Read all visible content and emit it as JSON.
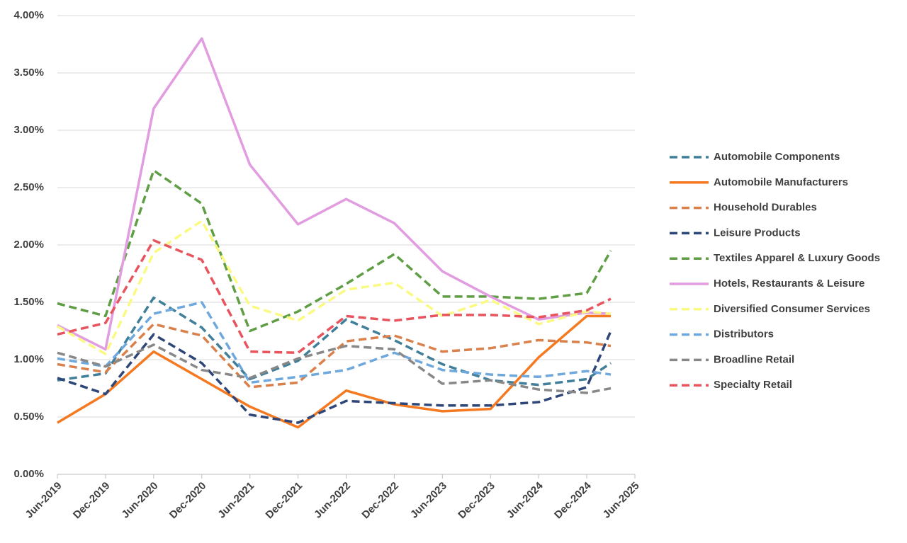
{
  "chart_data": {
    "type": "line",
    "x": [
      "2019-06",
      "2019-12",
      "2020-06",
      "2020-12",
      "2021-06",
      "2021-12",
      "2022-06",
      "2022-12",
      "2023-06",
      "2023-12",
      "2024-06",
      "2024-12",
      "2025-03"
    ],
    "xlim": [
      "2019-06",
      "2025-06"
    ],
    "xticks": [
      {
        "value": "2019-06",
        "label": "Jun-2019"
      },
      {
        "value": "2019-12",
        "label": "Dec-2019"
      },
      {
        "value": "2020-06",
        "label": "Jun-2020"
      },
      {
        "value": "2020-12",
        "label": "Dec-2020"
      },
      {
        "value": "2021-06",
        "label": "Jun-2021"
      },
      {
        "value": "2021-12",
        "label": "Dec-2021"
      },
      {
        "value": "2022-06",
        "label": "Jun-2022"
      },
      {
        "value": "2022-12",
        "label": "Dec-2022"
      },
      {
        "value": "2023-06",
        "label": "Jun-2023"
      },
      {
        "value": "2023-12",
        "label": "Dec-2023"
      },
      {
        "value": "2024-06",
        "label": "Jun-2024"
      },
      {
        "value": "2024-12",
        "label": "Dec-2024"
      },
      {
        "value": "2025-06",
        "label": "Jun-2025"
      }
    ],
    "ylim": [
      0,
      4
    ],
    "yticks": [
      {
        "value": 0,
        "label": "0.00%"
      },
      {
        "value": 0.5,
        "label": "0.50%"
      },
      {
        "value": 1,
        "label": "1.00%"
      },
      {
        "value": 1.5,
        "label": "1.50%"
      },
      {
        "value": 2,
        "label": "2.00%"
      },
      {
        "value": 2.5,
        "label": "2.50%"
      },
      {
        "value": 3,
        "label": "3.00%"
      },
      {
        "value": 3.5,
        "label": "3.50%"
      },
      {
        "value": 4,
        "label": "4.00%"
      }
    ],
    "grid": true,
    "legend": "right",
    "series": [
      {
        "name": "Automobile Components",
        "color": "#3f7f9a",
        "dashed": true,
        "values": [
          0.82,
          0.88,
          1.54,
          1.28,
          0.83,
          0.99,
          1.35,
          1.17,
          0.96,
          0.82,
          0.78,
          0.83,
          0.97
        ]
      },
      {
        "name": "Automobile Manufacturers",
        "color": "#f47920",
        "dashed": false,
        "values": [
          0.45,
          0.7,
          1.07,
          0.83,
          0.59,
          0.41,
          0.73,
          0.61,
          0.55,
          0.57,
          1.02,
          1.38,
          1.38
        ]
      },
      {
        "name": "Household Durables",
        "color": "#d9804b",
        "dashed": true,
        "values": [
          0.96,
          0.89,
          1.31,
          1.21,
          0.76,
          0.8,
          1.16,
          1.21,
          1.07,
          1.1,
          1.17,
          1.15,
          1.12
        ]
      },
      {
        "name": "Leisure Products",
        "color": "#2f4778",
        "dashed": true,
        "values": [
          0.84,
          0.7,
          1.22,
          0.97,
          0.52,
          0.45,
          0.64,
          0.62,
          0.6,
          0.6,
          0.63,
          0.76,
          1.25
        ]
      },
      {
        "name": "Textiles Apparel & Luxury Goods",
        "color": "#5f9e45",
        "dashed": true,
        "values": [
          1.49,
          1.38,
          2.65,
          2.36,
          1.25,
          1.42,
          1.66,
          1.92,
          1.55,
          1.55,
          1.53,
          1.58,
          1.95
        ]
      },
      {
        "name": "Hotels, Restaurants & Leisure",
        "color": "#e29ce0",
        "dashed": false,
        "values": [
          1.3,
          1.09,
          3.19,
          3.8,
          2.7,
          2.18,
          2.4,
          2.19,
          1.77,
          1.55,
          1.35,
          1.41,
          1.4
        ]
      },
      {
        "name": "Diversified Consumer Services",
        "color": "#fafa82",
        "dashed": true,
        "values": [
          1.29,
          1.05,
          1.93,
          2.21,
          1.47,
          1.34,
          1.61,
          1.67,
          1.38,
          1.52,
          1.31,
          1.42,
          1.4
        ]
      },
      {
        "name": "Distributors",
        "color": "#6fa8dc",
        "dashed": true,
        "values": [
          1.01,
          0.94,
          1.4,
          1.5,
          0.8,
          0.85,
          0.91,
          1.06,
          0.91,
          0.87,
          0.85,
          0.9,
          0.87
        ]
      },
      {
        "name": "Broadline Retail",
        "color": "#888888",
        "dashed": true,
        "values": [
          1.06,
          0.94,
          1.13,
          0.91,
          0.84,
          1.01,
          1.12,
          1.09,
          0.79,
          0.82,
          0.74,
          0.71,
          0.75
        ]
      },
      {
        "name": "Specialty Retail",
        "color": "#e8545e",
        "dashed": true,
        "values": [
          1.22,
          1.32,
          2.04,
          1.87,
          1.07,
          1.06,
          1.38,
          1.34,
          1.39,
          1.39,
          1.37,
          1.43,
          1.53
        ]
      }
    ]
  }
}
